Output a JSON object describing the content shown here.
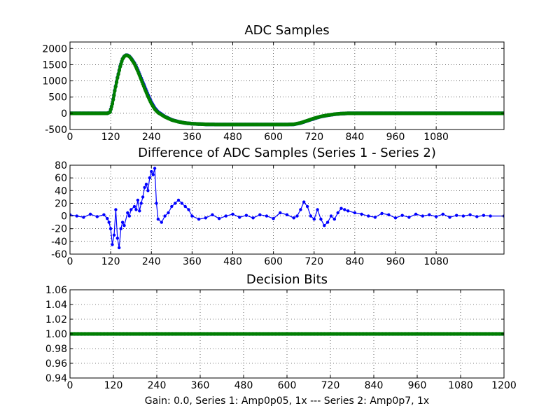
{
  "chart_data": [
    {
      "type": "scatter",
      "title": "ADC Samples",
      "xlim": [
        0,
        1280
      ],
      "ylim": [
        -500,
        2200
      ],
      "xticks": [
        0,
        120,
        240,
        360,
        480,
        600,
        720,
        840,
        960,
        1080
      ],
      "yticks": [
        -500,
        0,
        500,
        1000,
        1500,
        2000
      ],
      "grid": true,
      "series": [
        {
          "color": "#0000ff",
          "marker": "dot",
          "x": [
            0,
            100,
            110,
            118,
            125,
            132,
            140,
            148,
            155,
            160,
            165,
            170,
            175,
            180,
            190,
            200,
            210,
            220,
            230,
            240,
            250,
            260,
            280,
            300,
            320,
            340,
            360,
            400,
            440,
            480,
            520,
            560,
            600,
            640,
            660,
            680,
            700,
            720,
            740,
            760,
            780,
            800,
            820,
            840,
            900,
            1000,
            1100,
            1280
          ],
          "y": [
            0,
            0,
            0,
            40,
            300,
            700,
            1100,
            1450,
            1680,
            1760,
            1795,
            1790,
            1760,
            1700,
            1550,
            1330,
            1080,
            820,
            570,
            340,
            160,
            40,
            -100,
            -200,
            -260,
            -300,
            -320,
            -340,
            -345,
            -345,
            -345,
            -345,
            -345,
            -345,
            -340,
            -300,
            -230,
            -160,
            -100,
            -60,
            -30,
            -10,
            0,
            0,
            0,
            0,
            0,
            0
          ]
        },
        {
          "color": "#007f00",
          "marker": "dot",
          "x": [
            0,
            100,
            110,
            118,
            125,
            132,
            140,
            148,
            155,
            160,
            165,
            170,
            175,
            180,
            190,
            200,
            210,
            220,
            230,
            240,
            250,
            260,
            280,
            300,
            320,
            340,
            360,
            400,
            440,
            480,
            520,
            560,
            600,
            640,
            660,
            680,
            700,
            720,
            740,
            760,
            780,
            800,
            820,
            840,
            900,
            1000,
            1100,
            1280
          ],
          "y": [
            0,
            0,
            0,
            35,
            290,
            690,
            1090,
            1440,
            1675,
            1755,
            1790,
            1785,
            1750,
            1690,
            1530,
            1300,
            1040,
            770,
            520,
            300,
            130,
            20,
            -110,
            -205,
            -262,
            -300,
            -320,
            -340,
            -345,
            -345,
            -345,
            -345,
            -345,
            -345,
            -338,
            -295,
            -225,
            -155,
            -96,
            -58,
            -28,
            -9,
            0,
            0,
            0,
            0,
            0,
            0
          ]
        }
      ]
    },
    {
      "type": "line",
      "title": "Difference of ADC Samples (Series 1 - Series 2)",
      "xlim": [
        0,
        1280
      ],
      "ylim": [
        -60,
        80
      ],
      "xticks": [
        0,
        120,
        240,
        360,
        480,
        600,
        720,
        840,
        960,
        1080
      ],
      "yticks": [
        -60,
        -40,
        -20,
        0,
        20,
        40,
        60,
        80
      ],
      "grid": true,
      "series": [
        {
          "color": "#0000ff",
          "marker": "dot",
          "x": [
            0,
            20,
            40,
            60,
            80,
            100,
            110,
            115,
            120,
            125,
            130,
            135,
            140,
            145,
            150,
            155,
            160,
            170,
            175,
            180,
            190,
            195,
            200,
            205,
            210,
            215,
            220,
            225,
            230,
            235,
            240,
            245,
            250,
            255,
            260,
            270,
            280,
            290,
            300,
            310,
            320,
            330,
            340,
            350,
            360,
            380,
            400,
            420,
            440,
            460,
            480,
            500,
            520,
            540,
            560,
            580,
            600,
            620,
            640,
            660,
            670,
            680,
            690,
            700,
            710,
            720,
            730,
            740,
            750,
            760,
            770,
            780,
            790,
            800,
            810,
            820,
            840,
            860,
            880,
            900,
            920,
            940,
            960,
            980,
            1000,
            1020,
            1040,
            1060,
            1080,
            1100,
            1120,
            1140,
            1160,
            1180,
            1200,
            1220,
            1240,
            1280
          ],
          "y": [
            2,
            0,
            -2,
            3,
            -1,
            2,
            -4,
            -10,
            -20,
            -45,
            -30,
            10,
            -35,
            -50,
            -20,
            -10,
            -15,
            5,
            0,
            10,
            15,
            10,
            25,
            8,
            20,
            30,
            45,
            50,
            40,
            60,
            70,
            65,
            75,
            20,
            -5,
            -10,
            0,
            5,
            15,
            20,
            25,
            20,
            15,
            10,
            0,
            -5,
            -3,
            2,
            -4,
            0,
            3,
            -2,
            1,
            -3,
            2,
            0,
            -4,
            5,
            2,
            -3,
            0,
            10,
            22,
            15,
            0,
            -5,
            10,
            -5,
            -15,
            -10,
            0,
            -5,
            5,
            12,
            10,
            8,
            5,
            3,
            0,
            -2,
            4,
            2,
            -3,
            1,
            -2,
            3,
            0,
            2,
            -1,
            3,
            -2,
            1,
            0,
            2,
            -1,
            1,
            0,
            0
          ]
        }
      ]
    },
    {
      "type": "scatter",
      "title": "Decision Bits",
      "xlabel": "Gain: 0.0, Series 1: Amp0p05, 1x --- Series 2: Amp0p7, 1x",
      "xlim": [
        0,
        1200
      ],
      "ylim": [
        0.94,
        1.06
      ],
      "xticks": [
        0,
        120,
        240,
        360,
        480,
        600,
        720,
        840,
        960,
        1080,
        1200
      ],
      "yticks": [
        0.94,
        0.96,
        0.98,
        1.0,
        1.02,
        1.04,
        1.06
      ],
      "ytick_labels": [
        "0.94",
        "0.96",
        "0.98",
        "1.00",
        "1.02",
        "1.04",
        "1.06"
      ],
      "grid": true,
      "series": [
        {
          "color": "#0000ff",
          "marker": "dot",
          "x": [
            0,
            1200
          ],
          "y": [
            1.0,
            1.0
          ]
        },
        {
          "color": "#007f00",
          "marker": "dot",
          "x": [
            0,
            1200
          ],
          "y": [
            1.0,
            1.0
          ]
        }
      ]
    }
  ]
}
